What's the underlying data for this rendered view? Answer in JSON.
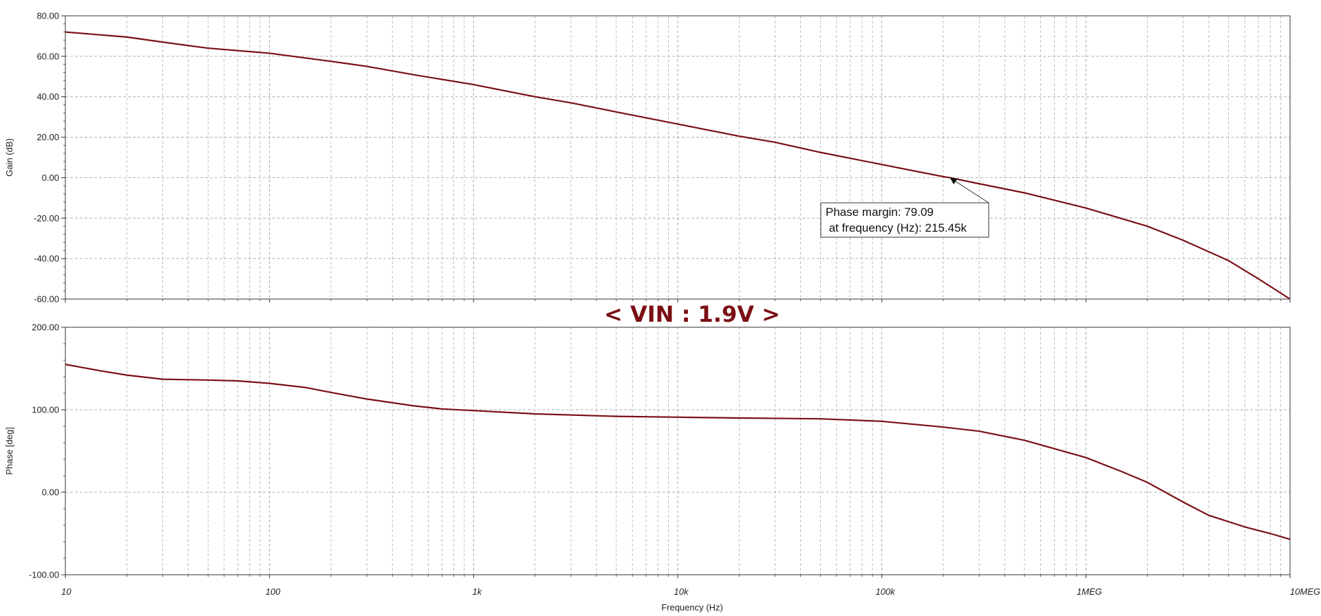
{
  "banner": "< VIN : 1.9V >",
  "annotation": {
    "line1": "Phase margin: 79.09",
    "line2": " at frequency (Hz): 215.45k"
  },
  "colors": {
    "trace": "#7a0f14",
    "grid": "#b0b0b0",
    "axis": "#333333",
    "banner": "#7a0f14"
  },
  "chart_data": [
    {
      "type": "line",
      "xscale": "log",
      "xlim": [
        10,
        10000000
      ],
      "ylim": [
        -60,
        80
      ],
      "grid": true,
      "xlabel": "",
      "ylabel": "Gain (dB)",
      "x_tick_values": [
        10,
        100,
        1000,
        10000,
        100000,
        1000000,
        10000000
      ],
      "x_tick_labels": [
        "10",
        "100",
        "1k",
        "10k",
        "100k",
        "1MEG",
        "10MEG"
      ],
      "y_tick_values": [
        80,
        60,
        40,
        20,
        0,
        -20,
        -40,
        -60
      ],
      "y_tick_labels": [
        "80.00",
        "60.00",
        "40.00",
        "20.00",
        "0.00",
        "-20.00",
        "-40.00",
        "-60.00"
      ],
      "show_x_tick_labels": false,
      "series": [
        {
          "x": [
            10,
            20,
            30,
            50,
            100,
            200,
            300,
            500,
            1000,
            2000,
            3000,
            5000,
            10000,
            20000,
            30000,
            50000,
            100000,
            200000,
            215450,
            300000,
            500000,
            1000000,
            2000000,
            3000000,
            5000000,
            7000000,
            10000000
          ],
          "y": [
            72,
            69.5,
            67,
            64,
            61.5,
            57.5,
            55,
            51,
            46,
            40,
            37,
            32.5,
            26.5,
            20.5,
            17.5,
            12.5,
            6.5,
            0.5,
            0,
            -3,
            -7.5,
            -15,
            -24,
            -31,
            -41,
            -50,
            -60
          ]
        }
      ],
      "markers": [
        {
          "x": 215450,
          "y": 0
        }
      ]
    },
    {
      "type": "line",
      "xscale": "log",
      "xlim": [
        10,
        10000000
      ],
      "ylim": [
        -100,
        200
      ],
      "grid": true,
      "xlabel": "Frequency (Hz)",
      "ylabel": "Phase [deg]",
      "x_tick_values": [
        10,
        100,
        1000,
        10000,
        100000,
        1000000,
        10000000
      ],
      "x_tick_labels": [
        "10",
        "100",
        "1k",
        "10k",
        "100k",
        "1MEG",
        "10MEG"
      ],
      "y_tick_values": [
        200,
        100,
        0,
        -100
      ],
      "y_tick_labels": [
        "200.00",
        "100.00",
        "0.00",
        "-100.00"
      ],
      "show_x_tick_labels": true,
      "series": [
        {
          "x": [
            10,
            15,
            20,
            30,
            50,
            70,
            100,
            150,
            200,
            300,
            500,
            700,
            1000,
            2000,
            5000,
            10000,
            20000,
            50000,
            100000,
            200000,
            300000,
            500000,
            1000000,
            1500000,
            2000000,
            3000000,
            4000000,
            6000000,
            8000000,
            10000000
          ],
          "y": [
            155,
            147,
            142,
            137,
            136,
            135,
            132,
            127,
            121,
            113,
            105,
            101,
            99,
            95,
            92,
            91,
            90,
            89,
            86,
            79,
            74,
            63,
            42,
            25,
            12,
            -12,
            -28,
            -42,
            -50,
            -57
          ]
        }
      ]
    }
  ]
}
